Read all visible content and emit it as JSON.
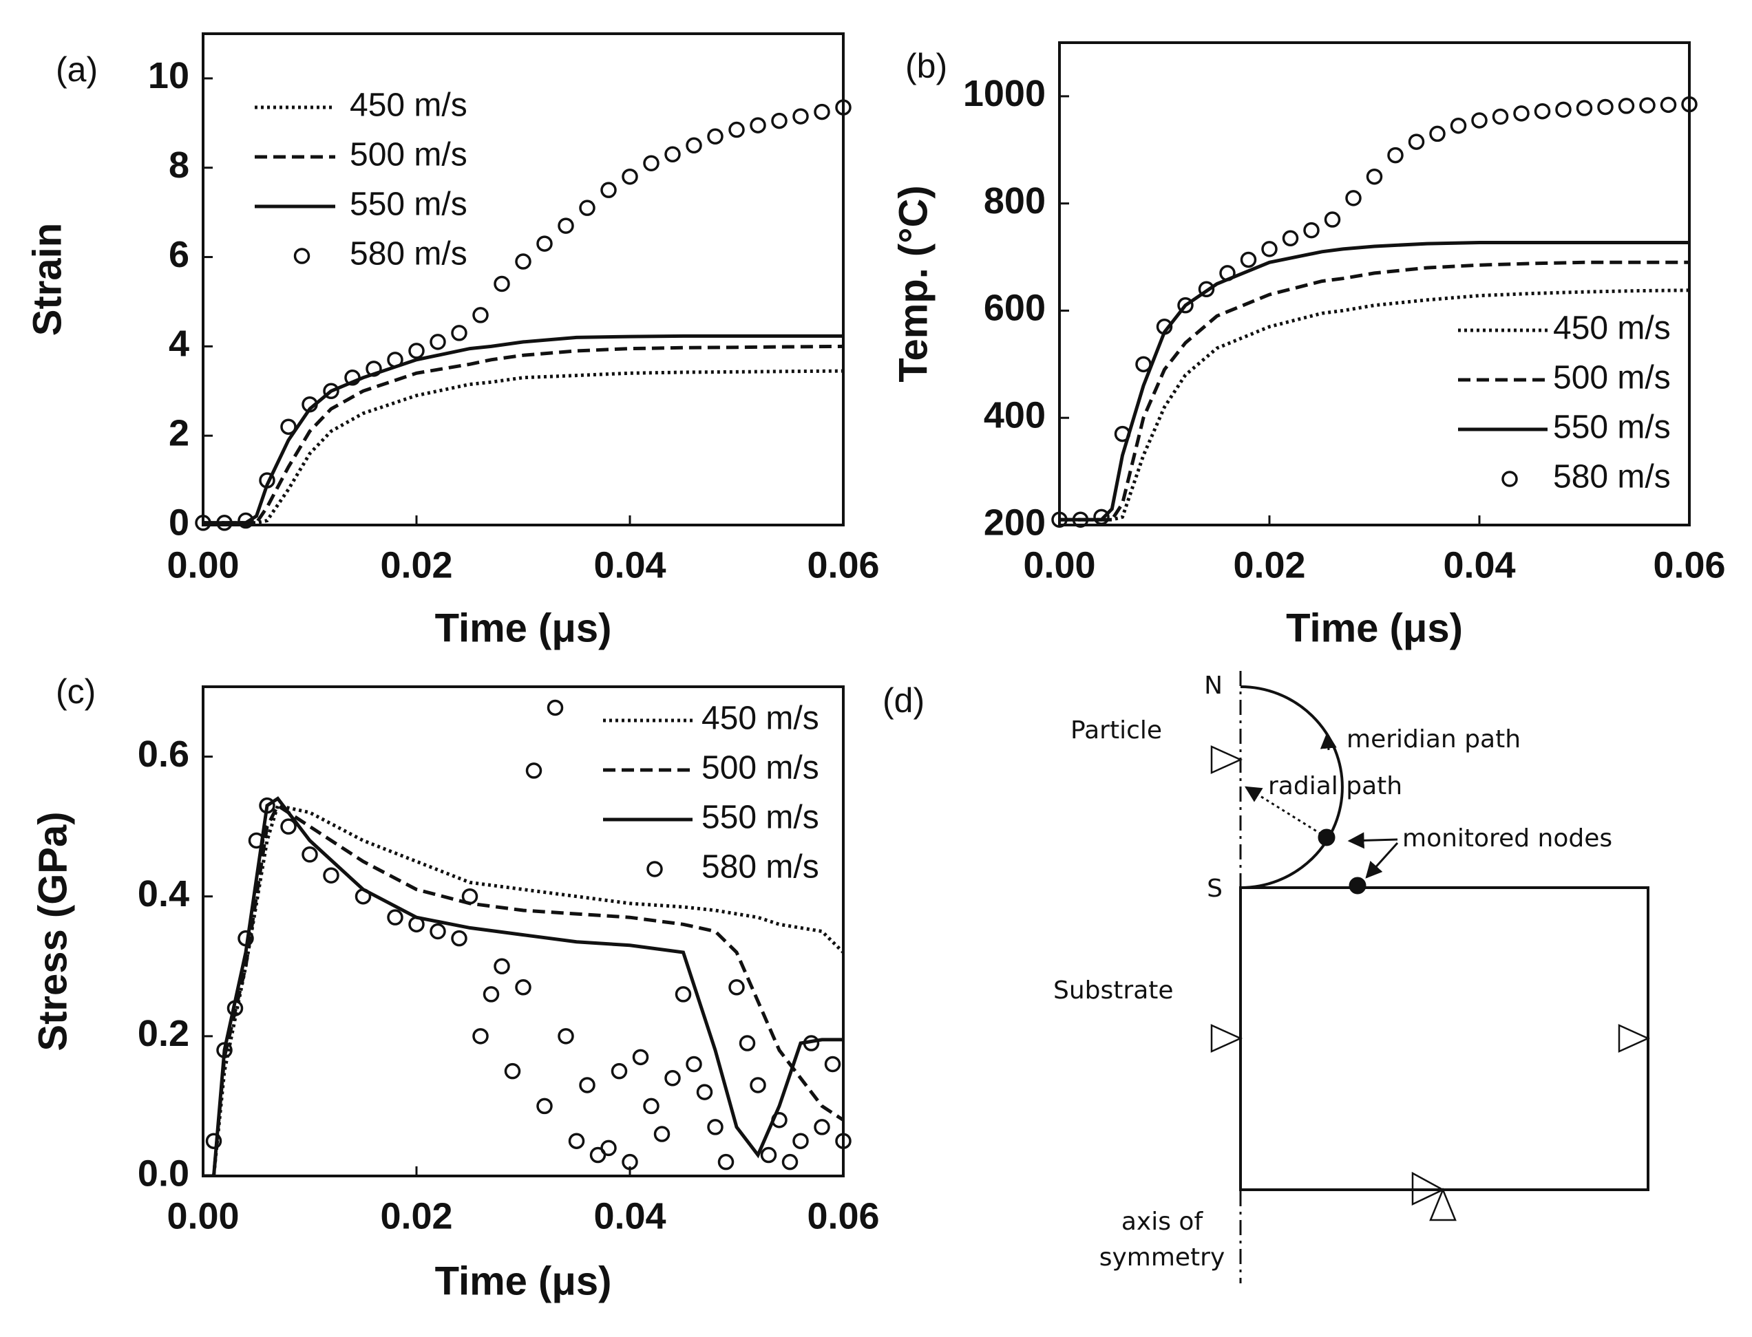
{
  "chart_data": [
    {
      "type": "line",
      "label": "(a)",
      "x_label": "Time (μs)",
      "y_label": "Strain",
      "xlim": [
        0,
        0.06
      ],
      "xticks": [
        {
          "value": 0,
          "label": "0.00"
        },
        0.02,
        0.04,
        0.06
      ],
      "ylim": [
        0,
        11
      ],
      "yticks": [
        0,
        2,
        4,
        6,
        8,
        10
      ],
      "legend": "upper left",
      "x": [
        0,
        0.004,
        0.005,
        0.006,
        0.008,
        0.01,
        0.012,
        0.015,
        0.02,
        0.025,
        0.027,
        0.03,
        0.035,
        0.04,
        0.045,
        0.05,
        0.055,
        0.06
      ],
      "series": [
        {
          "name": "450 m/s",
          "color": "#111111",
          "style": "dotted",
          "values": [
            0.05,
            0.05,
            0.05,
            0.1,
            0.8,
            1.6,
            2.1,
            2.5,
            2.9,
            3.15,
            3.2,
            3.3,
            3.35,
            3.4,
            3.42,
            3.43,
            3.44,
            3.45
          ]
        },
        {
          "name": "500 m/s",
          "color": "#111111",
          "style": "dashed",
          "values": [
            0.05,
            0.05,
            0.05,
            0.4,
            1.3,
            2.1,
            2.6,
            3.0,
            3.4,
            3.6,
            3.7,
            3.8,
            3.9,
            3.95,
            3.97,
            3.98,
            3.99,
            4.0
          ]
        },
        {
          "name": "550 m/s",
          "color": "#111111",
          "style": "solid",
          "values": [
            0.05,
            0.05,
            0.2,
            0.9,
            1.9,
            2.6,
            3.0,
            3.3,
            3.7,
            3.95,
            4.0,
            4.1,
            4.2,
            4.22,
            4.23,
            4.23,
            4.23,
            4.23
          ]
        },
        {
          "name": "580 m/s",
          "color": "#111111",
          "style": "circles",
          "x": [
            0,
            0.002,
            0.004,
            0.006,
            0.008,
            0.01,
            0.012,
            0.014,
            0.016,
            0.018,
            0.02,
            0.022,
            0.024,
            0.026,
            0.028,
            0.03,
            0.032,
            0.034,
            0.036,
            0.038,
            0.04,
            0.042,
            0.044,
            0.046,
            0.048,
            0.05,
            0.052,
            0.054,
            0.056,
            0.058,
            0.06
          ],
          "values": [
            0.05,
            0.05,
            0.1,
            1.0,
            2.2,
            2.7,
            3.0,
            3.3,
            3.5,
            3.7,
            3.9,
            4.1,
            4.3,
            4.7,
            5.4,
            5.9,
            6.3,
            6.7,
            7.1,
            7.5,
            7.8,
            8.1,
            8.3,
            8.5,
            8.7,
            8.85,
            8.95,
            9.05,
            9.15,
            9.25,
            9.35
          ]
        }
      ]
    },
    {
      "type": "line",
      "label": "(b)",
      "x_label": "Time (μs)",
      "y_label": "Temp. (°C)",
      "xlim": [
        0,
        0.06
      ],
      "xticks": [
        {
          "value": 0,
          "label": "0.00"
        },
        0.02,
        0.04,
        0.06
      ],
      "ylim": [
        200,
        1100
      ],
      "yticks": [
        200,
        400,
        600,
        800,
        1000
      ],
      "legend": "lower right",
      "x": [
        0,
        0.004,
        0.005,
        0.006,
        0.008,
        0.01,
        0.012,
        0.015,
        0.02,
        0.025,
        0.027,
        0.03,
        0.035,
        0.04,
        0.045,
        0.05,
        0.055,
        0.06
      ],
      "series": [
        {
          "name": "450 m/s",
          "color": "#111111",
          "style": "dotted",
          "values": [
            210,
            210,
            210,
            215,
            330,
            420,
            480,
            530,
            570,
            595,
            600,
            610,
            620,
            628,
            632,
            635,
            637,
            638
          ]
        },
        {
          "name": "500 m/s",
          "color": "#111111",
          "style": "dashed",
          "values": [
            210,
            210,
            210,
            240,
            400,
            490,
            540,
            590,
            630,
            655,
            660,
            670,
            680,
            685,
            688,
            690,
            690,
            690
          ]
        },
        {
          "name": "550 m/s",
          "color": "#111111",
          "style": "solid",
          "values": [
            210,
            210,
            230,
            330,
            460,
            560,
            610,
            650,
            690,
            710,
            715,
            720,
            725,
            727,
            727,
            727,
            727,
            727
          ]
        },
        {
          "name": "580 m/s",
          "color": "#111111",
          "style": "circles",
          "x": [
            0,
            0.002,
            0.004,
            0.006,
            0.008,
            0.01,
            0.012,
            0.014,
            0.016,
            0.018,
            0.02,
            0.022,
            0.024,
            0.026,
            0.028,
            0.03,
            0.032,
            0.034,
            0.036,
            0.038,
            0.04,
            0.042,
            0.044,
            0.046,
            0.048,
            0.05,
            0.052,
            0.054,
            0.056,
            0.058,
            0.06
          ],
          "values": [
            210,
            210,
            215,
            370,
            500,
            570,
            610,
            640,
            670,
            695,
            715,
            735,
            750,
            770,
            810,
            850,
            890,
            915,
            930,
            945,
            955,
            962,
            968,
            972,
            975,
            978,
            980,
            982,
            983,
            984,
            985
          ]
        }
      ]
    },
    {
      "type": "line",
      "label": "(c)",
      "x_label": "Time (μs)",
      "y_label": "Stress (GPa)",
      "xlim": [
        0,
        0.06
      ],
      "xticks": [
        {
          "value": 0,
          "label": "0.00"
        },
        0.02,
        0.04,
        0.06
      ],
      "ylim": [
        0,
        0.7
      ],
      "yticks": [
        {
          "value": 0,
          "label": "0.0"
        },
        0.2,
        0.4,
        0.6
      ],
      "legend": "upper right",
      "x": [
        0,
        0.001,
        0.002,
        0.004,
        0.006,
        0.007,
        0.01,
        0.015,
        0.02,
        0.025,
        0.03,
        0.035,
        0.04,
        0.045,
        0.048,
        0.05,
        0.052,
        0.054,
        0.056,
        0.058,
        0.06
      ],
      "series": [
        {
          "name": "450 m/s",
          "color": "#111111",
          "style": "dotted",
          "values": [
            0,
            0,
            0.15,
            0.3,
            0.48,
            0.53,
            0.52,
            0.48,
            0.45,
            0.42,
            0.41,
            0.4,
            0.39,
            0.385,
            0.38,
            0.375,
            0.37,
            0.36,
            0.355,
            0.35,
            0.32
          ]
        },
        {
          "name": "500 m/s",
          "color": "#111111",
          "style": "dashed",
          "values": [
            0,
            0,
            0.17,
            0.3,
            0.5,
            0.53,
            0.5,
            0.45,
            0.41,
            0.39,
            0.38,
            0.375,
            0.37,
            0.36,
            0.35,
            0.32,
            0.25,
            0.18,
            0.14,
            0.1,
            0.08
          ]
        },
        {
          "name": "550 m/s",
          "color": "#111111",
          "style": "solid",
          "values": [
            0,
            0,
            0.18,
            0.32,
            0.53,
            0.54,
            0.48,
            0.41,
            0.37,
            0.355,
            0.345,
            0.335,
            0.33,
            0.32,
            0.18,
            0.07,
            0.03,
            0.1,
            0.19,
            0.195,
            0.195
          ]
        },
        {
          "name": "580 m/s",
          "color": "#111111",
          "style": "circles",
          "x": [
            0.001,
            0.002,
            0.003,
            0.004,
            0.005,
            0.006,
            0.008,
            0.01,
            0.012,
            0.015,
            0.018,
            0.02,
            0.022,
            0.024,
            0.025,
            0.026,
            0.027,
            0.028,
            0.029,
            0.03,
            0.031,
            0.032,
            0.033,
            0.034,
            0.035,
            0.036,
            0.037,
            0.038,
            0.039,
            0.04,
            0.041,
            0.042,
            0.043,
            0.044,
            0.045,
            0.046,
            0.047,
            0.048,
            0.049,
            0.05,
            0.051,
            0.052,
            0.053,
            0.054,
            0.055,
            0.056,
            0.057,
            0.058,
            0.059,
            0.06
          ],
          "values": [
            0.05,
            0.18,
            0.24,
            0.34,
            0.48,
            0.53,
            0.5,
            0.46,
            0.43,
            0.4,
            0.37,
            0.36,
            0.35,
            0.34,
            0.4,
            0.2,
            0.26,
            0.3,
            0.15,
            0.27,
            0.58,
            0.1,
            0.67,
            0.2,
            0.05,
            0.13,
            0.03,
            0.04,
            0.15,
            0.02,
            0.17,
            0.1,
            0.06,
            0.14,
            0.26,
            0.16,
            0.12,
            0.07,
            0.02,
            0.27,
            0.19,
            0.13,
            0.03,
            0.08,
            0.02,
            0.05,
            0.19,
            0.07,
            0.16,
            0.05
          ]
        }
      ]
    }
  ],
  "diagram": {
    "label": "(d)",
    "top_node": "N",
    "bottom_node": "S",
    "particle": "Particle",
    "substrate": "Substrate",
    "meridian": "meridian path",
    "radial": "radial path",
    "nodes": "monitored nodes",
    "axis": [
      "axis of",
      "symmetry"
    ]
  }
}
